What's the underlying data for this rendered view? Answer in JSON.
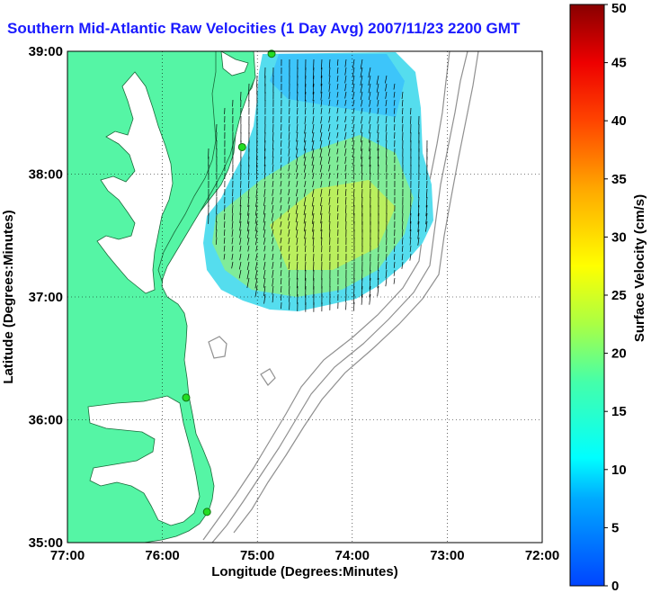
{
  "title": "Southern Mid-Atlantic Raw Velocities (1 Day Avg) 2007/11/23 2200 GMT",
  "axes": {
    "xlabel": "Longitude (Degrees:Minutes)",
    "ylabel": "Latitude (Degrees:Minutes)",
    "xticks": [
      "77:00",
      "76:00",
      "75:00",
      "74:00",
      "73:00",
      "72:00"
    ],
    "yticks": [
      "39:00",
      "38:00",
      "37:00",
      "36:00",
      "35:00"
    ],
    "xlim": [
      -77,
      -72
    ],
    "ylim": [
      35,
      39
    ],
    "grid": true
  },
  "colorbar": {
    "label": "Surface Velocity (cm/s)",
    "ticks": [
      "50",
      "45",
      "40",
      "35",
      "30",
      "25",
      "20",
      "15",
      "10",
      "5",
      "0"
    ],
    "range": [
      0,
      50
    ]
  },
  "colors": {
    "land": "#55f5a5",
    "water": "#ffffff",
    "title": "#1a1aff",
    "contour": "#909090",
    "station": "#22dd22"
  },
  "stations": [
    {
      "lon": -74.85,
      "lat": 38.98
    },
    {
      "lon": -75.16,
      "lat": 38.22
    },
    {
      "lon": -75.75,
      "lat": 36.18
    },
    {
      "lon": -75.53,
      "lat": 35.25
    }
  ]
}
